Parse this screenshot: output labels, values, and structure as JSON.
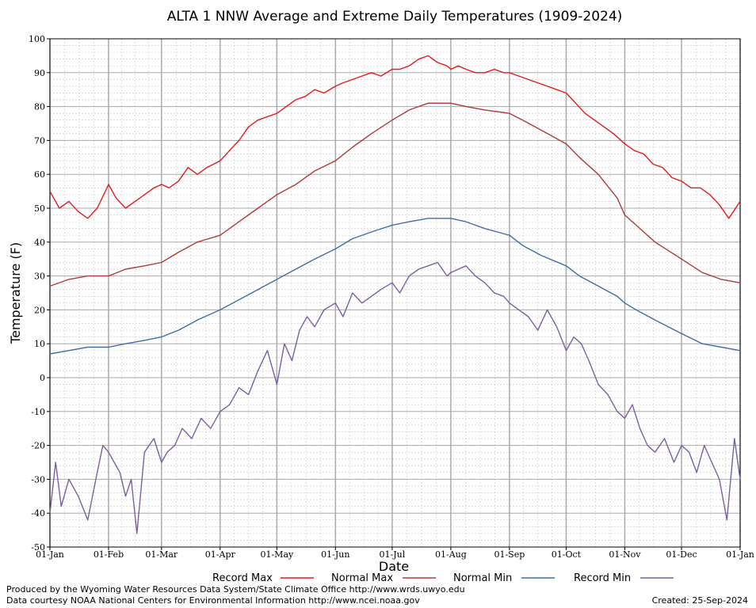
{
  "chart_data": {
    "type": "line",
    "title": "ALTA 1 NNW Average and Extreme Daily Temperatures (1909-2024)",
    "xlabel": "Date",
    "ylabel": "Temperature (F)",
    "ylim": [
      -50,
      100
    ],
    "yticks": [
      100,
      90,
      80,
      70,
      60,
      50,
      40,
      30,
      20,
      10,
      0,
      -10,
      -20,
      -30,
      -40,
      -50
    ],
    "xticks": [
      "01-Jan",
      "01-Feb",
      "01-Mar",
      "01-Apr",
      "01-May",
      "01-Jun",
      "01-Jul",
      "01-Aug",
      "01-Sep",
      "01-Oct",
      "01-Nov",
      "01-Dec",
      "01-Jan"
    ],
    "xtick_days": [
      0,
      31,
      59,
      90,
      120,
      151,
      181,
      212,
      243,
      273,
      304,
      334,
      365
    ],
    "grid": true,
    "legend_position": "bottom",
    "series": [
      {
        "name": "Record Max",
        "color": "#e41a1c",
        "x": [
          0,
          5,
          10,
          15,
          20,
          25,
          31,
          35,
          40,
          45,
          50,
          55,
          59,
          63,
          68,
          73,
          78,
          83,
          90,
          95,
          100,
          105,
          110,
          115,
          120,
          125,
          130,
          135,
          140,
          145,
          151,
          155,
          160,
          165,
          170,
          175,
          181,
          185,
          190,
          195,
          200,
          205,
          210,
          212,
          216,
          220,
          225,
          230,
          235,
          240,
          243,
          248,
          253,
          258,
          263,
          268,
          273,
          278,
          283,
          288,
          293,
          298,
          304,
          309,
          314,
          319,
          324,
          329,
          334,
          339,
          344,
          349,
          354,
          359,
          365
        ],
        "y": [
          55,
          50,
          52,
          49,
          47,
          50,
          57,
          53,
          50,
          52,
          54,
          56,
          57,
          56,
          58,
          62,
          60,
          62,
          64,
          67,
          70,
          74,
          76,
          77,
          78,
          80,
          82,
          83,
          85,
          84,
          86,
          87,
          88,
          89,
          90,
          89,
          91,
          91,
          92,
          94,
          95,
          93,
          92,
          91,
          92,
          91,
          90,
          90,
          91,
          90,
          90,
          89,
          88,
          87,
          86,
          85,
          84,
          81,
          78,
          76,
          74,
          72,
          69,
          67,
          66,
          63,
          62,
          59,
          58,
          56,
          56,
          54,
          51,
          47,
          52
        ]
      },
      {
        "name": "Normal Max",
        "color": "#b03a3a",
        "x": [
          0,
          10,
          20,
          31,
          40,
          50,
          59,
          68,
          78,
          90,
          100,
          110,
          120,
          130,
          140,
          151,
          160,
          170,
          181,
          190,
          200,
          205,
          212,
          220,
          230,
          243,
          250,
          260,
          273,
          280,
          290,
          300,
          304,
          310,
          320,
          334,
          345,
          355,
          365
        ],
        "y": [
          27,
          29,
          30,
          30,
          32,
          33,
          34,
          37,
          40,
          42,
          46,
          50,
          54,
          57,
          61,
          64,
          68,
          72,
          76,
          79,
          81,
          81,
          81,
          80,
          79,
          78,
          76,
          73,
          69,
          65,
          60,
          53,
          48,
          45,
          40,
          35,
          31,
          29,
          28
        ]
      },
      {
        "name": "Normal Min",
        "color": "#3e6ea8",
        "x": [
          0,
          10,
          20,
          31,
          40,
          50,
          59,
          68,
          78,
          90,
          100,
          110,
          120,
          130,
          140,
          151,
          160,
          170,
          181,
          190,
          200,
          205,
          212,
          220,
          230,
          243,
          250,
          260,
          273,
          280,
          290,
          300,
          304,
          310,
          320,
          334,
          345,
          355,
          365
        ],
        "y": [
          7,
          8,
          9,
          9,
          10,
          11,
          12,
          14,
          17,
          20,
          23,
          26,
          29,
          32,
          35,
          38,
          41,
          43,
          45,
          46,
          47,
          47,
          47,
          46,
          44,
          42,
          39,
          36,
          33,
          30,
          27,
          24,
          22,
          20,
          17,
          13,
          10,
          9,
          8
        ]
      },
      {
        "name": "Record Min",
        "color": "#7b5fa3",
        "x": [
          0,
          3,
          6,
          10,
          15,
          20,
          25,
          28,
          31,
          34,
          37,
          40,
          43,
          46,
          50,
          55,
          59,
          62,
          66,
          70,
          75,
          80,
          85,
          90,
          95,
          100,
          105,
          110,
          115,
          120,
          124,
          128,
          132,
          136,
          140,
          145,
          151,
          155,
          160,
          165,
          170,
          175,
          181,
          185,
          190,
          195,
          200,
          205,
          210,
          212,
          216,
          220,
          225,
          230,
          235,
          240,
          243,
          248,
          253,
          258,
          263,
          268,
          273,
          277,
          281,
          285,
          290,
          295,
          300,
          304,
          308,
          312,
          316,
          320,
          325,
          330,
          334,
          338,
          342,
          346,
          350,
          354,
          358,
          362,
          365
        ],
        "y": [
          -40,
          -25,
          -38,
          -30,
          -35,
          -42,
          -28,
          -20,
          -22,
          -25,
          -28,
          -35,
          -30,
          -46,
          -22,
          -18,
          -25,
          -22,
          -20,
          -15,
          -18,
          -12,
          -15,
          -10,
          -8,
          -3,
          -5,
          2,
          8,
          -2,
          10,
          5,
          14,
          18,
          15,
          20,
          22,
          18,
          25,
          22,
          24,
          26,
          28,
          25,
          30,
          32,
          33,
          34,
          30,
          31,
          32,
          33,
          30,
          28,
          25,
          24,
          22,
          20,
          18,
          14,
          20,
          15,
          8,
          12,
          10,
          5,
          -2,
          -5,
          -10,
          -12,
          -8,
          -15,
          -20,
          -22,
          -18,
          -25,
          -20,
          -22,
          -28,
          -20,
          -25,
          -30,
          -42,
          -18,
          -30
        ]
      }
    ]
  },
  "footer": {
    "line1": "Produced by the Wyoming Water Resources Data System/State Climate Office http://www.wrds.uwyo.edu",
    "line2": "Data courtesy NOAA National Centers for Environmental Information http://www.ncei.noaa.gov",
    "created": "Created:  25-Sep-2024"
  }
}
